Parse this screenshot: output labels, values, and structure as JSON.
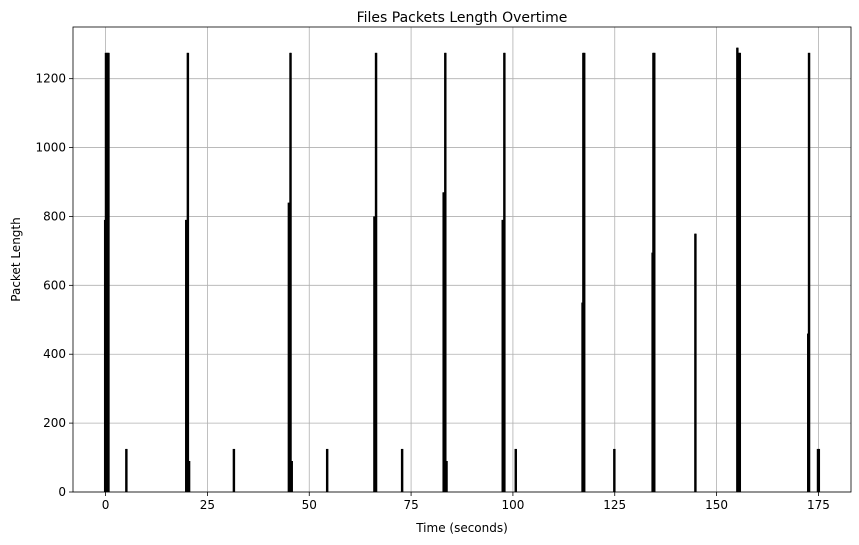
{
  "chart_data": {
    "type": "bar",
    "title": "Files Packets Length Overtime",
    "xlabel": "Time (seconds)",
    "ylabel": "Packet Length",
    "xlim": [
      -8,
      183
    ],
    "ylim": [
      0,
      1350
    ],
    "xticks": [
      0,
      25,
      50,
      75,
      100,
      125,
      150,
      175
    ],
    "yticks": [
      0,
      200,
      400,
      600,
      800,
      1000,
      1200
    ],
    "grid": true,
    "bar_width": 0.4,
    "bar_color": "#000000",
    "x": [
      -0.2,
      0.0,
      0.2,
      0.4,
      0.6,
      0.8,
      5.0,
      5.2,
      19.7,
      19.9,
      20.1,
      20.3,
      20.6,
      31.4,
      31.6,
      44.9,
      45.1,
      45.3,
      45.5,
      45.8,
      54.3,
      54.5,
      65.9,
      66.1,
      66.3,
      66.5,
      72.7,
      72.9,
      82.9,
      83.1,
      83.3,
      83.5,
      83.8,
      97.4,
      97.6,
      97.8,
      98.0,
      100.6,
      100.8,
      117.0,
      117.2,
      117.4,
      117.6,
      124.8,
      125.0,
      134.2,
      134.4,
      134.6,
      134.8,
      144.7,
      144.9,
      155.0,
      155.2,
      155.4,
      155.6,
      155.8,
      172.4,
      172.6,
      172.8,
      174.8,
      175.0,
      175.2
    ],
    "values": [
      790,
      1275,
      1275,
      1275,
      1275,
      1275,
      125,
      125,
      790,
      790,
      1275,
      1275,
      90,
      125,
      125,
      840,
      840,
      1275,
      1275,
      90,
      125,
      125,
      800,
      800,
      1275,
      1275,
      125,
      125,
      870,
      870,
      1275,
      1275,
      90,
      790,
      790,
      1275,
      1275,
      125,
      125,
      550,
      1275,
      1275,
      1275,
      125,
      125,
      695,
      1275,
      1275,
      1275,
      750,
      750,
      1290,
      1290,
      1275,
      1275,
      1275,
      460,
      1275,
      1275,
      125,
      125,
      125
    ]
  }
}
